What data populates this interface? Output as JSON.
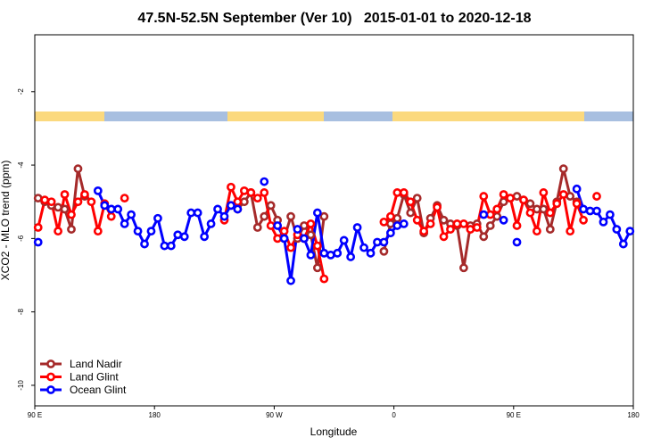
{
  "chart_data": {
    "type": "line",
    "title": "47.5N-52.5N September (Ver 10)   2015-01-01 to 2020-12-18",
    "x_label": "Longitude",
    "y_label": "XCO2 - MLO trend (ppm)",
    "x": [
      92.5,
      97.5,
      102.5,
      107.5,
      112.5,
      117.5,
      122.5,
      127.5,
      132.5,
      137.5,
      142.5,
      147.5,
      152.5,
      157.5,
      162.5,
      167.5,
      172.5,
      177.5,
      182.5,
      187.5,
      192.5,
      197.5,
      202.5,
      207.5,
      212.5,
      217.5,
      222.5,
      227.5,
      232.5,
      237.5,
      242.5,
      247.5,
      252.5,
      257.5,
      262.5,
      267.5,
      272.5,
      277.5,
      282.5,
      287.5,
      292.5,
      297.5,
      302.5,
      307.5,
      312.5,
      317.5,
      322.5,
      327.5,
      332.5,
      337.5,
      342.5,
      347.5,
      352.5,
      357.5,
      362.5,
      367.5,
      372.5,
      377.5,
      382.5,
      387.5,
      392.5,
      397.5,
      402.5,
      407.5,
      412.5,
      417.5,
      422.5,
      427.5,
      432.5,
      437.5,
      442.5,
      447.5,
      452.5,
      457.5,
      462.5,
      467.5,
      472.5,
      477.5,
      482.5,
      487.5,
      492.5,
      497.5,
      502.5,
      507.5,
      512.5,
      517.5,
      522.5,
      527.5,
      532.5,
      537.5
    ],
    "series": [
      {
        "name": "Land Nadir",
        "color": "#a52a2a",
        "values": [
          -4.9,
          -5.0,
          -5.1,
          -5.15,
          -5.2,
          -5.75,
          -4.1,
          -4.85,
          null,
          null,
          null,
          null,
          null,
          null,
          null,
          null,
          null,
          null,
          null,
          null,
          null,
          null,
          null,
          null,
          null,
          null,
          null,
          null,
          null,
          -5.1,
          -5.2,
          -5.0,
          -4.75,
          -5.7,
          -5.4,
          -5.1,
          -5.5,
          -6.0,
          -5.4,
          -6.0,
          -5.65,
          -5.9,
          -6.8,
          -5.4,
          null,
          null,
          null,
          null,
          null,
          null,
          null,
          null,
          -6.35,
          -5.6,
          -5.45,
          -4.8,
          -5.3,
          -4.9,
          -5.85,
          -5.45,
          -5.1,
          -5.5,
          -5.6,
          -5.65,
          -6.8,
          -5.65,
          -5.6,
          -5.95,
          -5.65,
          -5.4,
          -5.0,
          -4.9,
          -4.85,
          -4.95,
          -5.05,
          -5.2,
          -5.2,
          -5.75,
          -5.0,
          -4.1,
          -4.85,
          -5.0,
          null,
          null,
          null,
          null,
          null,
          null,
          null,
          null
        ]
      },
      {
        "name": "Land Glint",
        "color": "#ff0000",
        "values": [
          -5.7,
          -4.95,
          -5.0,
          -5.8,
          -4.8,
          -5.35,
          -5.0,
          -4.8,
          -5.0,
          -5.8,
          -5.05,
          -5.4,
          null,
          -4.9,
          null,
          null,
          null,
          null,
          null,
          null,
          null,
          null,
          null,
          null,
          null,
          null,
          null,
          null,
          -5.5,
          -4.6,
          -5.0,
          -4.7,
          -4.75,
          -4.9,
          -4.75,
          -5.65,
          -6.0,
          -5.8,
          -6.25,
          -5.9,
          -6.0,
          -5.6,
          -6.2,
          -7.1,
          null,
          null,
          null,
          null,
          null,
          null,
          null,
          null,
          -5.55,
          -5.4,
          -4.75,
          -4.75,
          -5.0,
          -5.5,
          -5.8,
          -5.6,
          -5.15,
          -5.95,
          -5.75,
          -5.6,
          -5.6,
          -5.75,
          -5.7,
          -4.85,
          -5.35,
          -5.2,
          -4.8,
          -4.9,
          -5.65,
          -4.95,
          -5.3,
          -5.8,
          -4.75,
          -5.3,
          -5.05,
          -4.8,
          -5.8,
          -5.05,
          -5.5,
          null,
          -4.85,
          null,
          null,
          null,
          null,
          null
        ]
      },
      {
        "name": "Ocean Glint",
        "color": "#0000ff",
        "values": [
          -6.1,
          null,
          null,
          null,
          null,
          null,
          null,
          null,
          null,
          -4.7,
          -5.1,
          -5.2,
          -5.2,
          -5.6,
          -5.35,
          -5.8,
          -6.15,
          -5.8,
          -5.45,
          -6.2,
          -6.2,
          -5.9,
          -5.95,
          -5.3,
          -5.3,
          -5.95,
          -5.6,
          -5.2,
          -5.4,
          -5.1,
          -5.2,
          null,
          null,
          null,
          -4.45,
          null,
          -5.65,
          -6.0,
          -7.15,
          -5.75,
          -6.0,
          -6.45,
          -5.3,
          -6.4,
          -6.45,
          -6.4,
          -6.05,
          -6.5,
          -5.7,
          -6.25,
          -6.4,
          -6.1,
          -6.1,
          -5.85,
          -5.65,
          -5.6,
          null,
          null,
          null,
          null,
          null,
          null,
          null,
          null,
          null,
          null,
          null,
          -5.35,
          null,
          null,
          -5.5,
          null,
          -6.1,
          null,
          null,
          null,
          null,
          null,
          null,
          null,
          null,
          -4.65,
          -5.2,
          -5.25,
          -5.25,
          -5.55,
          -5.35,
          -5.75,
          -6.15,
          -5.8
        ]
      }
    ],
    "xlim": [
      90,
      540
    ],
    "xticks": [
      {
        "value": 90,
        "label": "90 E"
      },
      {
        "value": 180,
        "label": "180"
      },
      {
        "value": 270,
        "label": "90 W"
      },
      {
        "value": 360,
        "label": "0"
      },
      {
        "value": 450,
        "label": "90 E"
      },
      {
        "value": 540,
        "label": "180"
      }
    ],
    "ylim": [
      -10.56,
      -0.45
    ],
    "yticks": [
      -2,
      -4,
      -6,
      -8,
      -10
    ],
    "legend": "lower left"
  }
}
